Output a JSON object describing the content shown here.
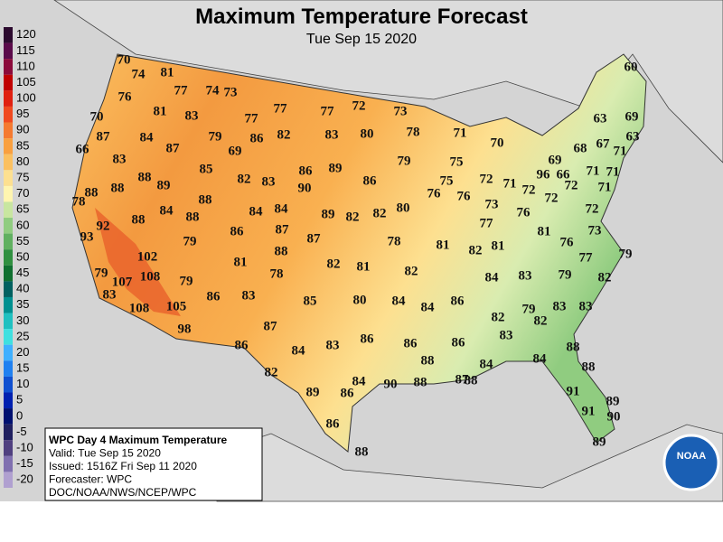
{
  "header": {
    "title": "Maximum Temperature Forecast",
    "subtitle": "Tue Sep 15 2020"
  },
  "legend": {
    "values": [
      120,
      115,
      110,
      105,
      100,
      95,
      90,
      85,
      80,
      75,
      70,
      65,
      60,
      55,
      50,
      45,
      40,
      35,
      30,
      25,
      20,
      15,
      10,
      5,
      0,
      -5,
      -10,
      -15,
      -20
    ],
    "colors": [
      "#2b0a2e",
      "#5a0a4a",
      "#8b0a3a",
      "#c00000",
      "#e02010",
      "#f04a20",
      "#f57a30",
      "#f9a040",
      "#fbc060",
      "#fde090",
      "#fff5b0",
      "#c8e6a0",
      "#90cc80",
      "#60b060",
      "#309040",
      "#107030",
      "#006060",
      "#009090",
      "#20c0c0",
      "#40e0e0",
      "#40b0ff",
      "#2080f0",
      "#1050d0",
      "#0020b0",
      "#001070",
      "#202060",
      "#504080",
      "#8070b0",
      "#b0a0d0"
    ]
  },
  "info": {
    "lines": [
      "WPC Day 4 Maximum Temperature",
      "Valid: Tue Sep 15 2020",
      "Issued: 1516Z Fri Sep 11 2020",
      "Forecaster: WPC",
      "DOC/NOAA/NWS/NCEP/WPC"
    ]
  },
  "logo": "NOAA",
  "stations": [
    70,
    74,
    81,
    77,
    74,
    73,
    60,
    76,
    77,
    72,
    73,
    77,
    81,
    83,
    77,
    70,
    63,
    69,
    87,
    84,
    79,
    86,
    82,
    83,
    80,
    78,
    71,
    70,
    68,
    67,
    63,
    71,
    66,
    87,
    69,
    83,
    79,
    75,
    69,
    86,
    89,
    85,
    66,
    71,
    71,
    96,
    88,
    89,
    82,
    83,
    90,
    86,
    75,
    72,
    71,
    72,
    72,
    71,
    73,
    78,
    88,
    88,
    88,
    76,
    76,
    72,
    84,
    88,
    84,
    84,
    89,
    82,
    82,
    80,
    76,
    72,
    92,
    88,
    77,
    73,
    78,
    93,
    86,
    87,
    87,
    79,
    81,
    82,
    81,
    81,
    76,
    88,
    102,
    77,
    79,
    82,
    81,
    81,
    82,
    84,
    83,
    79,
    82,
    79,
    107,
    108,
    79,
    78,
    83,
    86,
    83,
    85,
    80,
    84,
    84,
    86,
    83,
    83,
    108,
    105,
    79,
    82,
    82,
    98,
    87,
    83,
    84,
    83,
    86,
    86,
    86,
    86,
    88,
    88,
    84,
    84,
    88,
    82,
    89,
    86,
    84,
    90,
    88,
    87,
    88,
    91,
    89,
    91,
    90,
    86,
    88,
    89
  ]
}
